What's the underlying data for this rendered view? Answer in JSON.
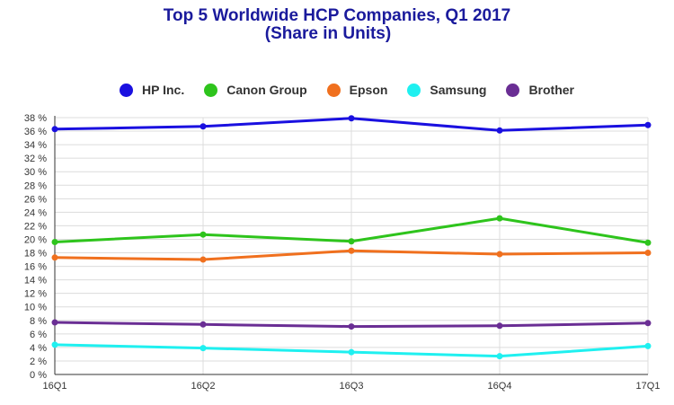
{
  "chart_data": {
    "type": "line",
    "title": "Top 5 Worldwide HCP Companies, Q1 2017",
    "subtitle": "(Share in Units)",
    "categories": [
      "16Q1",
      "16Q2",
      "16Q3",
      "16Q4",
      "17Q1"
    ],
    "ylim": [
      0,
      38
    ],
    "y_ticks": [
      0,
      2,
      4,
      6,
      8,
      10,
      12,
      14,
      16,
      18,
      20,
      22,
      24,
      26,
      28,
      30,
      32,
      34,
      36,
      38
    ],
    "y_tick_suffix": " %",
    "grid": true,
    "legend_position": "top",
    "series": [
      {
        "name": "HP Inc.",
        "color": "#1a10e0",
        "values": [
          36.3,
          36.7,
          37.9,
          36.1,
          36.9
        ]
      },
      {
        "name": "Canon Group",
        "color": "#2ec41c",
        "values": [
          19.6,
          20.7,
          19.7,
          23.1,
          19.5
        ]
      },
      {
        "name": "Epson",
        "color": "#f0701e",
        "values": [
          17.3,
          17.0,
          18.3,
          17.8,
          18.0
        ]
      },
      {
        "name": "Samsung",
        "color": "#1ff0f0",
        "values": [
          4.4,
          3.9,
          3.3,
          2.7,
          4.2
        ]
      },
      {
        "name": "Brother",
        "color": "#6a2e94",
        "values": [
          7.7,
          7.4,
          7.1,
          7.2,
          7.6
        ]
      }
    ]
  }
}
